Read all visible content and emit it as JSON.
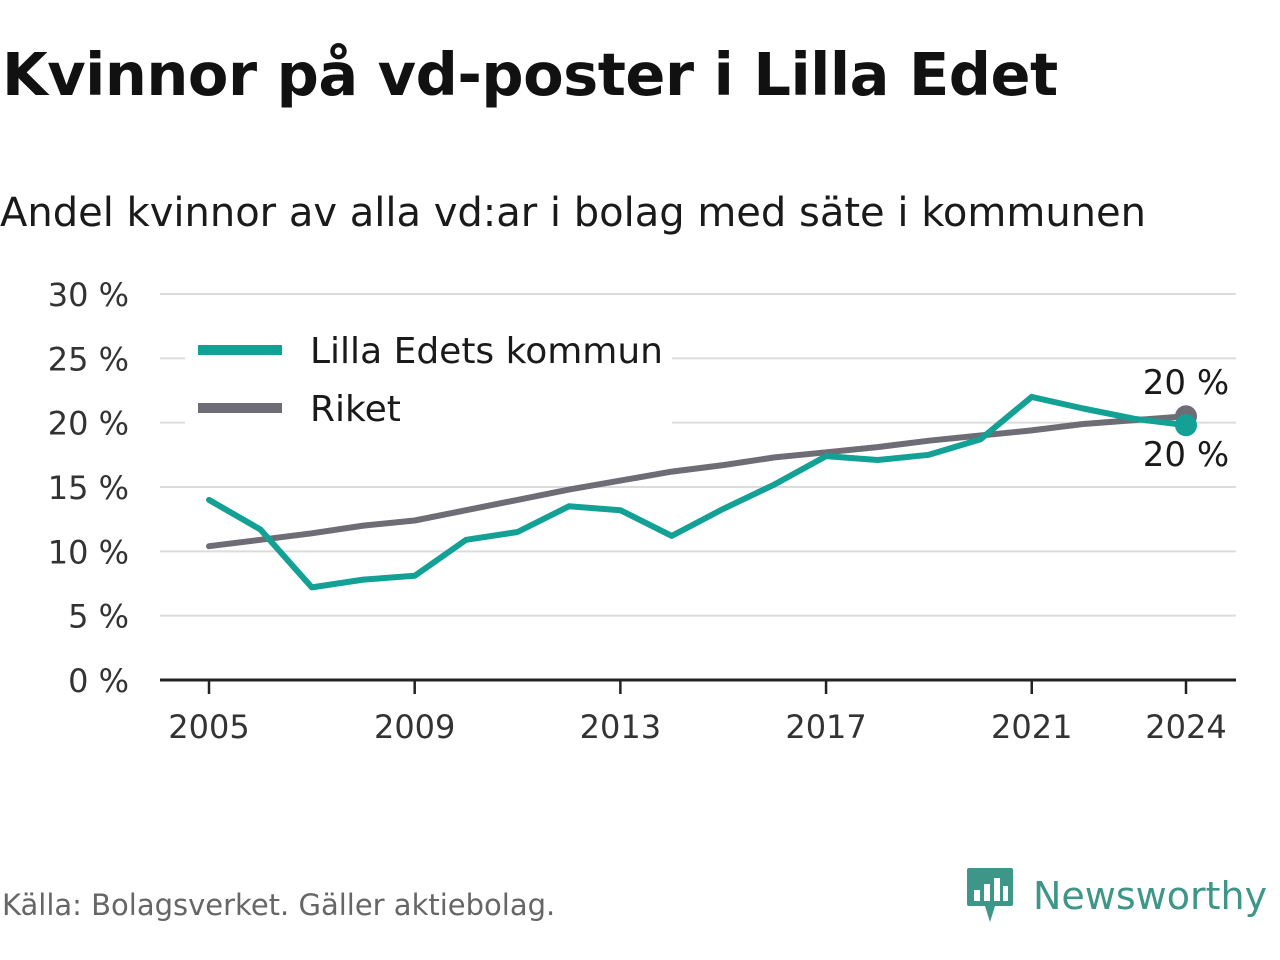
{
  "header": {
    "title": "Kvinnor på vd-poster i Lilla Edet",
    "subtitle": "Andel kvinnor av alla vd:ar i bolag med säte i kommunen"
  },
  "footer": {
    "source": "Källa: Bolagsverket. Gäller aktiebolag.",
    "brand": "Newsworthy"
  },
  "colors": {
    "lilla_edet": "#13a195",
    "riket": "#6e6c75",
    "grid": "#dcdcdc",
    "axis": "#222222",
    "brand": "#3e9688"
  },
  "icons": {
    "brand_logo": "newsworthy-logo-icon"
  },
  "chart_data": {
    "type": "line",
    "x": [
      2005,
      2006,
      2007,
      2008,
      2009,
      2010,
      2011,
      2012,
      2013,
      2014,
      2015,
      2016,
      2017,
      2018,
      2019,
      2020,
      2021,
      2022,
      2023,
      2024
    ],
    "x_tick_labels": [
      "2005",
      "2009",
      "2013",
      "2017",
      "2021",
      "2024"
    ],
    "x_ticks": [
      2005,
      2009,
      2013,
      2017,
      2021,
      2024
    ],
    "y_ticks": [
      0,
      5,
      10,
      15,
      20,
      25,
      30
    ],
    "y_tick_labels": [
      "0 %",
      "5 %",
      "10 %",
      "15 %",
      "20 %",
      "25 %",
      "30 %"
    ],
    "ylim": [
      0,
      30
    ],
    "xlim": [
      2004,
      2025
    ],
    "grid": true,
    "legend_position": "top-left",
    "series": [
      {
        "name": "Lilla Edets kommun",
        "values": [
          14.0,
          11.7,
          7.2,
          7.8,
          8.1,
          10.9,
          11.5,
          13.5,
          13.2,
          11.2,
          13.3,
          15.2,
          17.4,
          17.1,
          17.5,
          18.7,
          22.0,
          21.1,
          20.3,
          19.8
        ],
        "end_label": "20 %"
      },
      {
        "name": "Riket",
        "values": [
          10.4,
          10.9,
          11.4,
          12.0,
          12.4,
          13.2,
          14.0,
          14.8,
          15.5,
          16.2,
          16.7,
          17.3,
          17.7,
          18.1,
          18.6,
          19.0,
          19.4,
          19.9,
          20.2,
          20.5
        ],
        "end_label": "20 %"
      }
    ]
  }
}
